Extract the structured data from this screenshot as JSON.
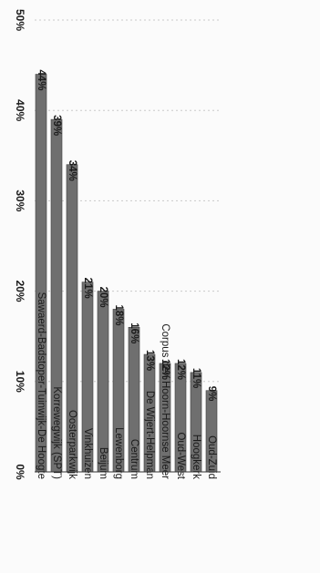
{
  "chart_data": {
    "type": "bar",
    "title": "",
    "xlabel": "",
    "ylabel": "",
    "categories": [
      "Sawaerd-Badstoper-Tuinwijk-De Hoogte",
      "Korrewegwijk (SPT)",
      "Oosterparkwijk",
      "Vinkhuizen",
      "Beijum",
      "Lewenborg",
      "Centrum",
      "De Wijert-Helpman",
      "Corpus den Hoorn-Hoornse Meer",
      "Oud-West",
      "Hoogkerk",
      "Oud-Zuid"
    ],
    "values": [
      44,
      39,
      34,
      21,
      20,
      18,
      16,
      13,
      12,
      12,
      11,
      9
    ],
    "data_labels": [
      "44%",
      "39%",
      "34%",
      "21%",
      "20%",
      "18%",
      "16%",
      "13%",
      "12%",
      "12%",
      "11%",
      "9%"
    ],
    "y_ticks": [
      "0%",
      "10%",
      "20%",
      "30%",
      "40%",
      "50%"
    ],
    "ylim": [
      0,
      50
    ],
    "grid": true,
    "bar_color": "#6f6f6f",
    "rotated": true
  }
}
